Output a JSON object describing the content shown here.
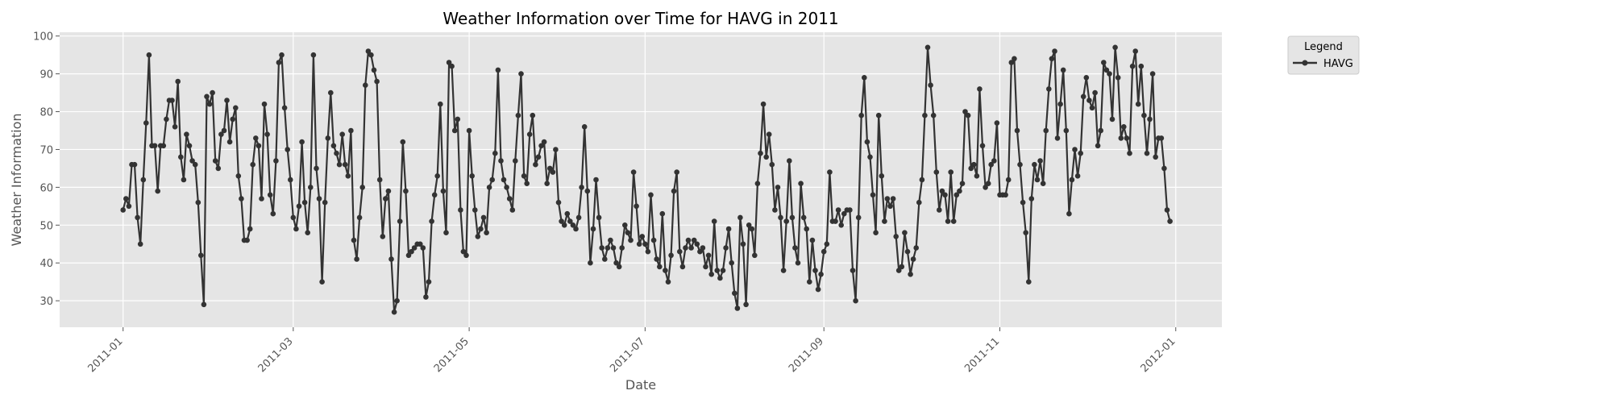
{
  "chart_data": {
    "type": "line",
    "title": "Weather Information over Time for HAVG in 2011",
    "xlabel": "Date",
    "ylabel": "Weather Information",
    "ylim": [
      23,
      101
    ],
    "yticks": [
      30,
      40,
      50,
      60,
      70,
      80,
      90,
      100
    ],
    "xlim": [
      "2010-12-10",
      "2012-01-17"
    ],
    "xticks": [
      "2011-01-01",
      "2011-03-01",
      "2011-05-01",
      "2011-07-01",
      "2011-09-01",
      "2011-11-01",
      "2012-01-01"
    ],
    "xtick_labels": [
      "2011-01",
      "2011-03",
      "2011-05",
      "2011-07",
      "2011-09",
      "2011-11",
      "2012-01"
    ],
    "grid": true,
    "legend": {
      "title": "Legend",
      "position": "outside-top-right"
    },
    "style": {
      "background": "#e5e5e5",
      "line_color": "#333333",
      "grid_color": "#ffffff"
    },
    "start_date": "2011-01-01",
    "series": [
      {
        "name": "HAVG",
        "values": [
          54,
          57,
          55,
          66,
          66,
          52,
          45,
          62,
          77,
          95,
          71,
          71,
          59,
          71,
          71,
          78,
          83,
          83,
          76,
          88,
          68,
          62,
          74,
          71,
          67,
          66,
          56,
          42,
          29,
          84,
          82,
          85,
          67,
          65,
          74,
          75,
          83,
          72,
          78,
          81,
          63,
          57,
          46,
          46,
          49,
          66,
          73,
          71,
          57,
          82,
          74,
          58,
          53,
          67,
          93,
          95,
          81,
          70,
          62,
          52,
          49,
          55,
          72,
          56,
          48,
          60,
          95,
          65,
          57,
          35,
          56,
          73,
          85,
          71,
          69,
          66,
          74,
          66,
          63,
          75,
          46,
          41,
          52,
          60,
          87,
          96,
          95,
          91,
          88,
          62,
          47,
          57,
          59,
          41,
          27,
          30,
          51,
          72,
          59,
          42,
          43,
          44,
          45,
          45,
          44,
          31,
          35,
          51,
          58,
          63,
          82,
          59,
          48,
          93,
          92,
          75,
          78,
          54,
          43,
          42,
          75,
          63,
          54,
          47,
          49,
          52,
          48,
          60,
          62,
          69,
          91,
          67,
          62,
          60,
          57,
          54,
          67,
          79,
          90,
          63,
          61,
          74,
          79,
          66,
          68,
          71,
          72,
          61,
          65,
          64,
          70,
          56,
          51,
          50,
          53,
          51,
          50,
          49,
          52,
          60,
          76,
          59,
          40,
          49,
          62,
          52,
          44,
          41,
          44,
          46,
          44,
          40,
          39,
          44,
          50,
          48,
          46,
          64,
          55,
          45,
          47,
          45,
          43,
          58,
          46,
          41,
          39,
          53,
          38,
          35,
          42,
          59,
          64,
          43,
          39,
          44,
          46,
          44,
          46,
          45,
          43,
          44,
          39,
          42,
          37,
          51,
          38,
          36,
          38,
          44,
          49,
          40,
          32,
          28,
          52,
          45,
          29,
          50,
          49,
          42,
          61,
          69,
          82,
          68,
          74,
          66,
          54,
          60,
          52,
          38,
          51,
          67,
          52,
          44,
          40,
          61,
          52,
          49,
          35,
          46,
          38,
          33,
          37,
          43,
          45,
          64,
          51,
          51,
          54,
          50,
          53,
          54,
          54,
          38,
          30,
          52,
          79,
          89,
          72,
          68,
          58,
          48,
          79,
          63,
          51,
          57,
          55,
          57,
          47,
          38,
          39,
          48,
          43,
          37,
          41,
          44,
          56,
          62,
          79,
          97,
          87,
          79,
          64,
          54,
          59,
          58,
          51,
          64,
          51,
          58,
          59,
          61,
          80,
          79,
          65,
          66,
          63,
          86,
          71,
          60,
          61,
          66,
          67,
          77,
          58,
          58,
          58,
          62,
          93,
          94,
          75,
          66,
          56,
          48,
          35,
          57,
          66,
          62,
          67,
          61,
          75,
          86,
          94,
          96,
          73,
          82,
          91,
          75,
          53,
          62,
          70,
          63,
          69,
          84,
          89,
          83,
          81,
          85,
          71,
          75,
          93,
          91,
          90,
          78,
          97,
          89,
          73,
          76,
          73,
          69,
          92,
          96,
          82,
          92,
          79,
          69,
          78,
          90,
          68,
          73,
          73,
          65,
          54,
          51
        ]
      }
    ]
  }
}
